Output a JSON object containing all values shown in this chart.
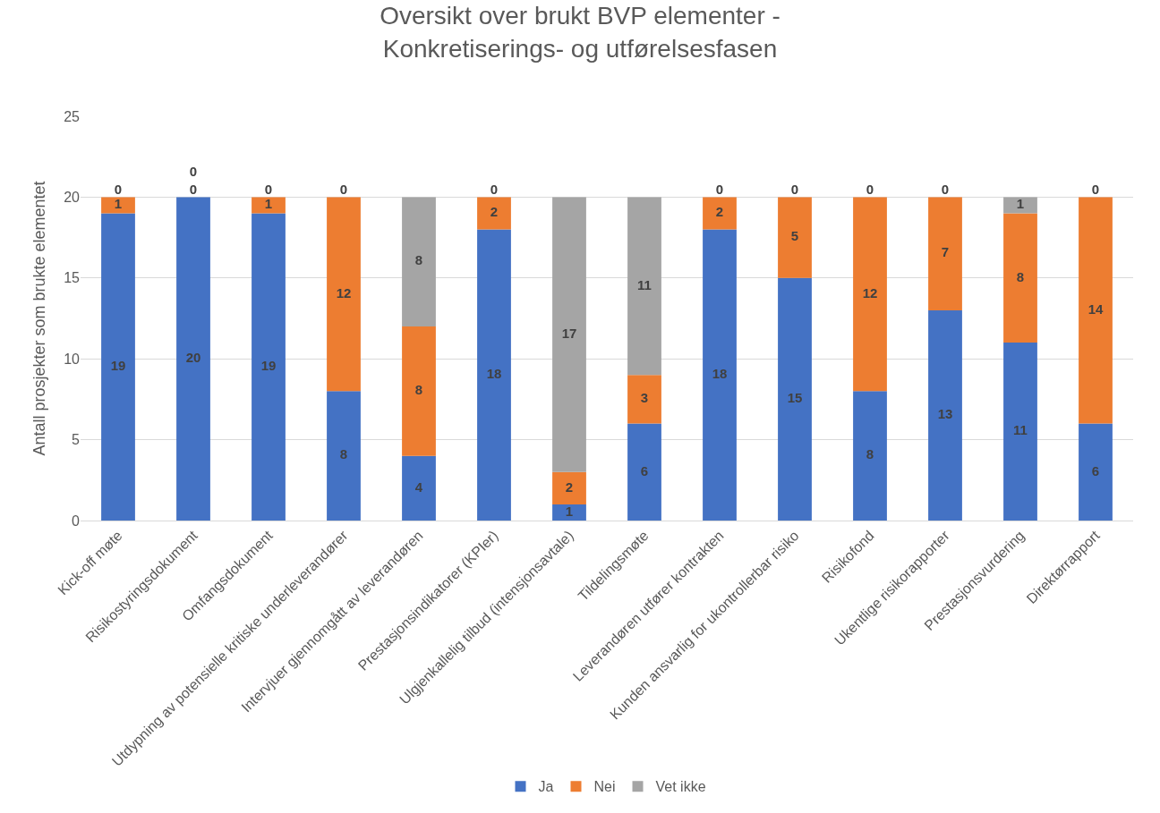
{
  "chart_data": {
    "type": "bar",
    "stacked": true,
    "title": "Oversikt over brukt BVP elementer -\nKonkretiserings- og utførelsesfasen",
    "ylabel": "Antall prosjekter som brukte elementet",
    "categories": [
      "Kick-off møte",
      "Risikostyringsdokument",
      "Omfangsdokument",
      "Utdypning av potensielle kritiske underleverandører",
      "Intervjuer gjennomgått av leverandøren",
      "Prestasjonsindikatorer (KPIer)",
      "Ulgjenkallelig tilbud (intensjonsavtale)",
      "Tildelingsmøte",
      "Leverandøren utfører kontrakten",
      "Kunden ansvarlig for ukontrollerbar risiko",
      "Risikofond",
      "Ukentlige risikorapporter",
      "Prestasjonsvurdering",
      "Direktørrapport"
    ],
    "series": [
      {
        "name": "Ja",
        "color": "#4472c4",
        "values": [
          19,
          20,
          19,
          8,
          4,
          18,
          1,
          6,
          18,
          15,
          8,
          13,
          11,
          6
        ]
      },
      {
        "name": "Nei",
        "color": "#ed7d31",
        "values": [
          1,
          0,
          1,
          12,
          8,
          2,
          2,
          3,
          2,
          5,
          12,
          7,
          8,
          14
        ]
      },
      {
        "name": "Vet ikke",
        "color": "#a5a5a5",
        "values": [
          0,
          0,
          0,
          0,
          8,
          0,
          17,
          11,
          0,
          0,
          0,
          0,
          1,
          0
        ]
      }
    ],
    "ylim": [
      0,
      25
    ],
    "yticks": [
      0,
      5,
      10,
      15,
      20,
      25
    ],
    "grid": "y",
    "legend": "bottom",
    "data_labels": true
  }
}
